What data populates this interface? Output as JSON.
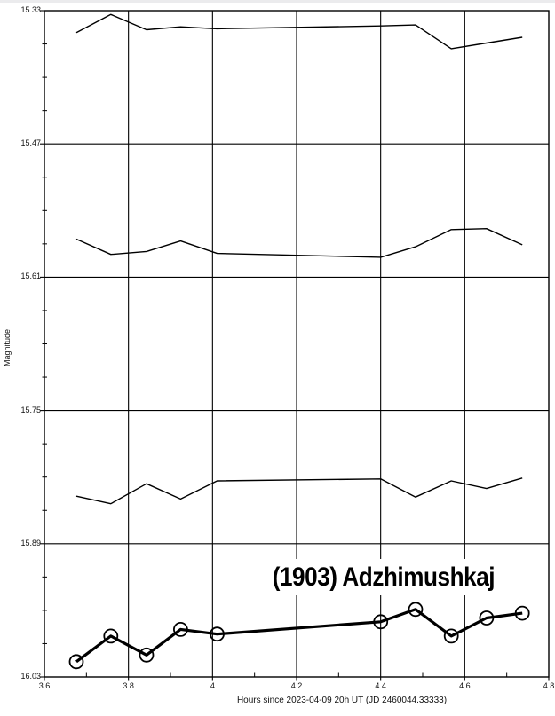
{
  "page": {
    "background": "#ffffff",
    "top_strip_color": "#ebebed",
    "line_color": "#000000",
    "text_color": "#111111"
  },
  "chart_data": {
    "type": "line",
    "title": "(1903) Adzhimushkaj",
    "xlabel": "Hours since 2023-04-09 20h UT (JD 2460044.33333)",
    "ylabel": "Magnitude",
    "grid": true,
    "legend": "none",
    "x_axis": {
      "min": 3.6,
      "max": 4.8,
      "tick_values": [
        3.6,
        3.8,
        4.0,
        4.2,
        4.4,
        4.6,
        4.8
      ],
      "tick_labels": [
        "3.6",
        "3.8",
        "4",
        "4.2",
        "4.4",
        "4.6",
        "4.8"
      ],
      "minor_ticks_per_interval": 1
    },
    "y_axis": {
      "min": 15.33,
      "max": 16.03,
      "inverted_down": true,
      "tick_values": [
        15.33,
        15.47,
        15.61,
        15.75,
        15.89,
        16.03
      ],
      "tick_labels": [
        "15.33",
        "15.47",
        "15.61",
        "15.75",
        "15.89",
        "16.03"
      ],
      "minor_ticks_per_interval": 3
    },
    "x": [
      3.676,
      3.758,
      3.843,
      3.924,
      4.011,
      4.4,
      4.483,
      4.568,
      4.652,
      4.737
    ],
    "series": [
      {
        "name": "comparison-line-1",
        "style": "thin",
        "values": [
          15.353,
          15.334,
          15.35,
          15.347,
          15.349,
          15.346,
          15.345,
          15.37,
          15.364,
          15.358
        ]
      },
      {
        "name": "comparison-line-2",
        "style": "thin",
        "values": [
          15.57,
          15.586,
          15.583,
          15.572,
          15.585,
          15.589,
          15.578,
          15.56,
          15.559,
          15.576
        ]
      },
      {
        "name": "comparison-line-3",
        "style": "thin",
        "values": [
          15.84,
          15.848,
          15.827,
          15.843,
          15.824,
          15.822,
          15.841,
          15.824,
          15.832,
          15.821
        ]
      },
      {
        "name": "target-lightcurve",
        "style": "thick-circle-markers",
        "values": [
          16.014,
          15.987,
          16.007,
          15.98,
          15.985,
          15.972,
          15.959,
          15.987,
          15.968,
          15.963
        ]
      }
    ]
  }
}
